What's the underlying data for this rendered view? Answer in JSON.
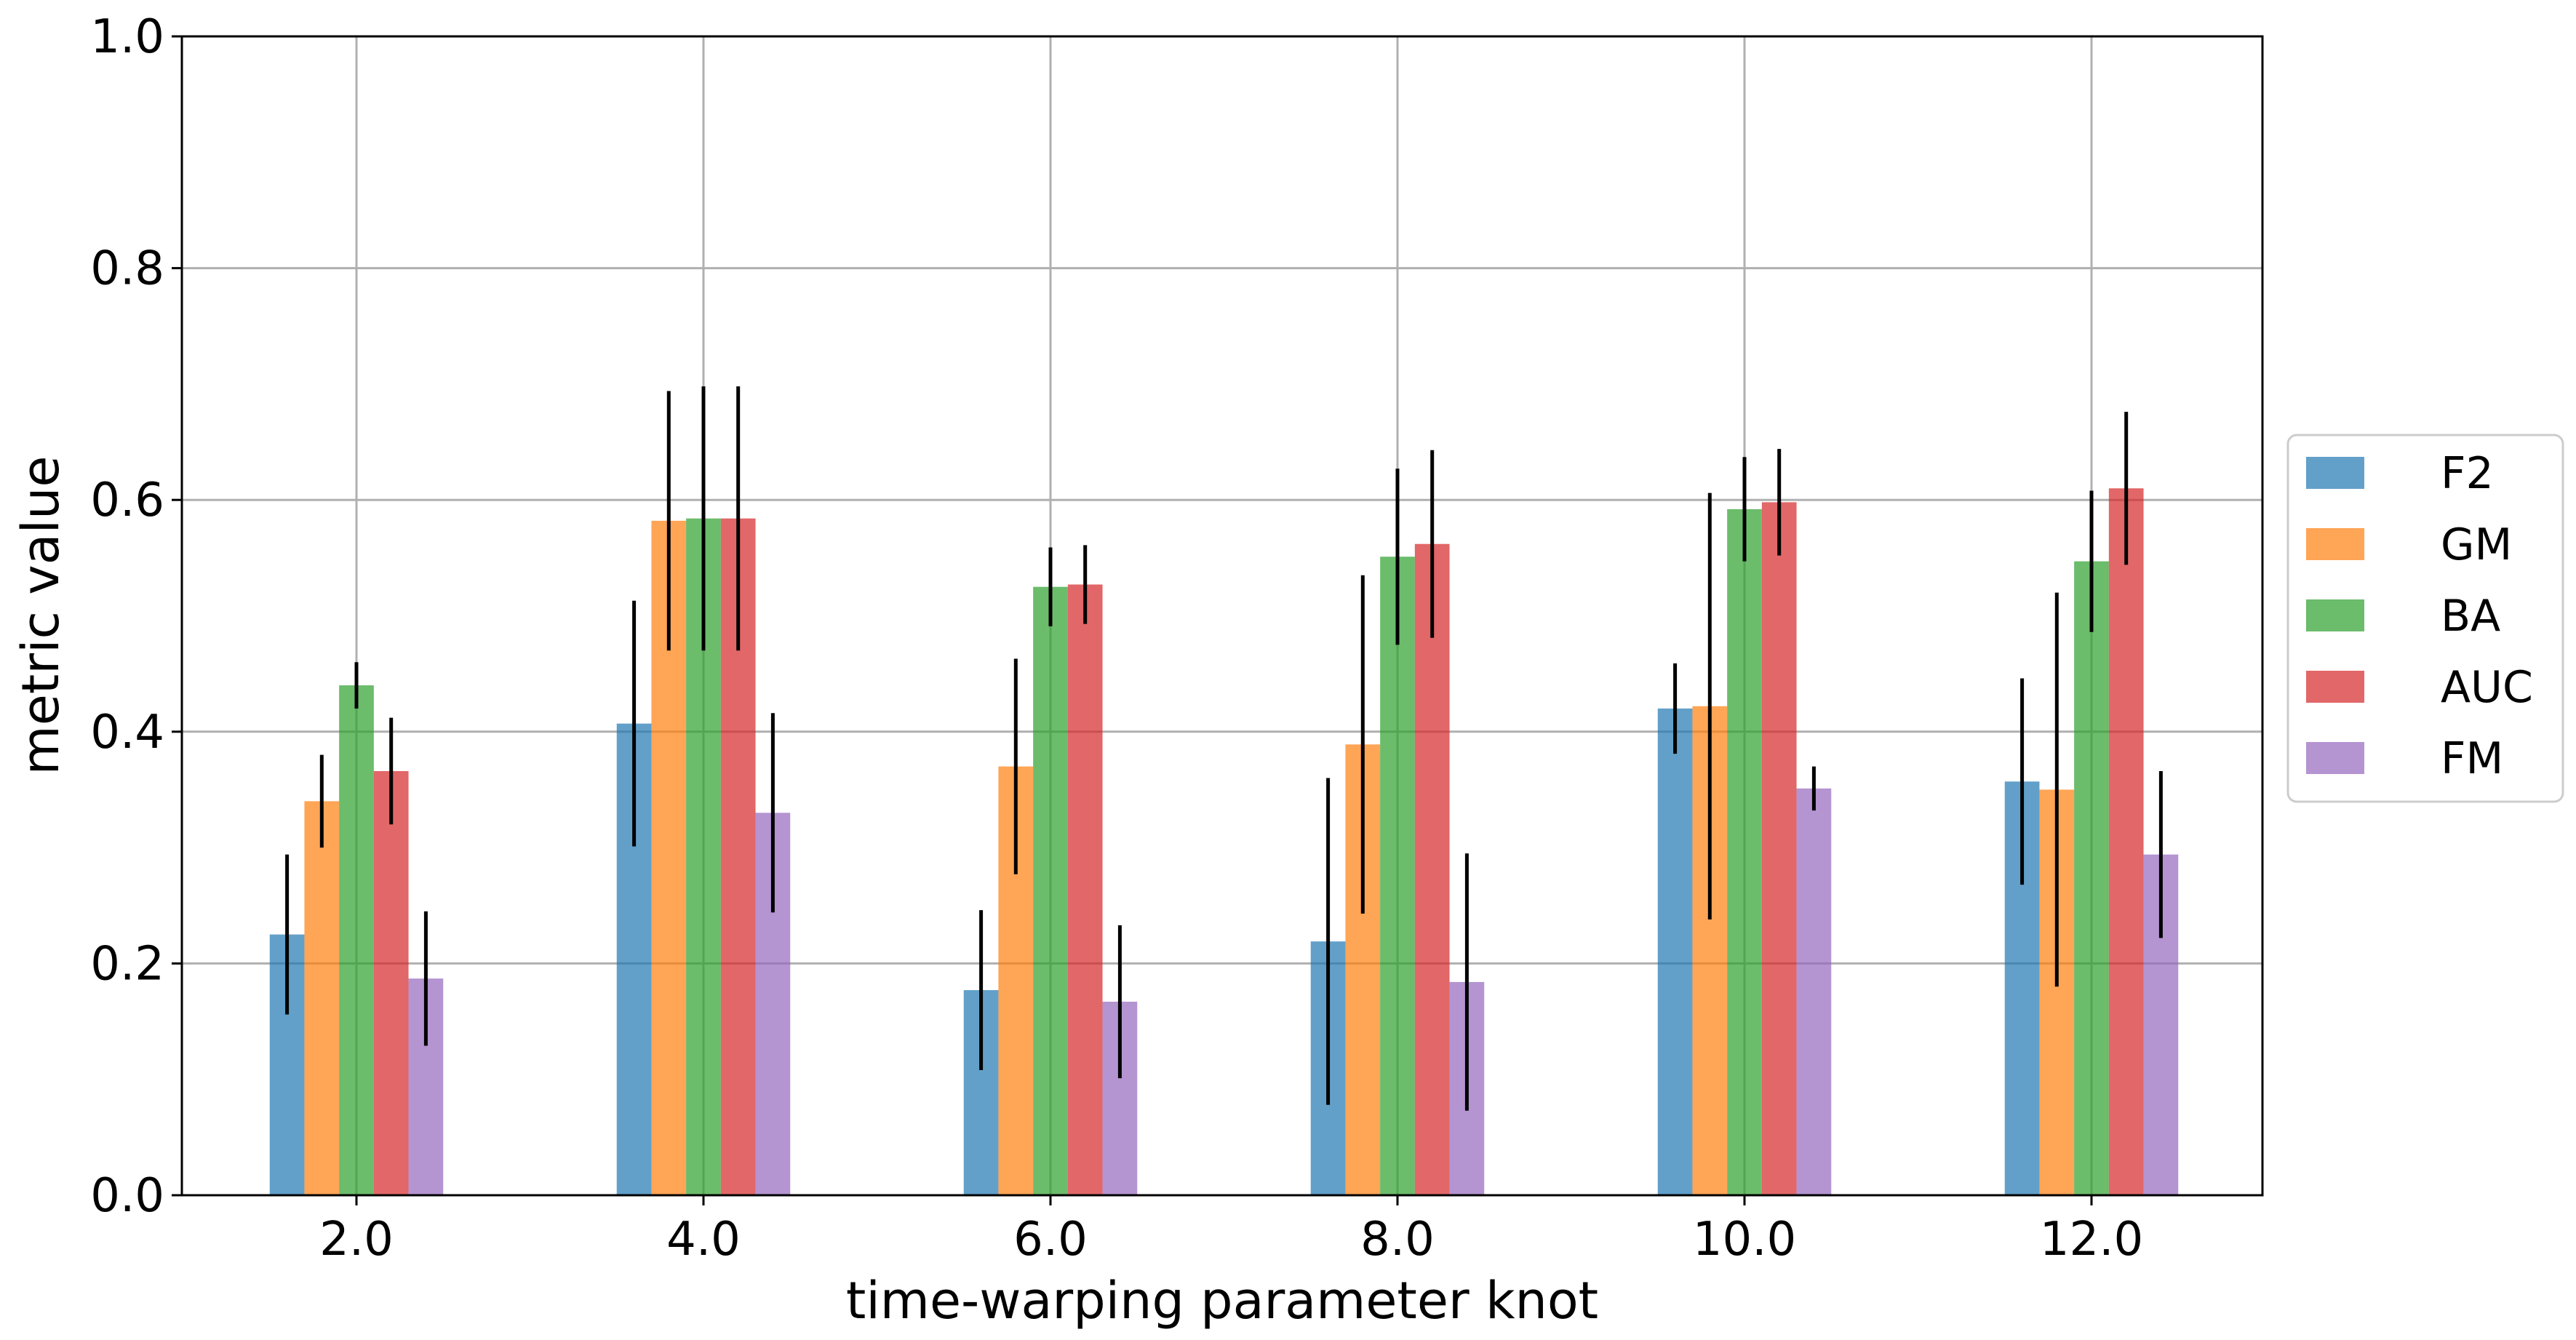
{
  "chart_data": {
    "type": "bar",
    "title": "",
    "xlabel": "time-warping parameter knot",
    "ylabel": "metric value",
    "ylim": [
      0.0,
      1.0
    ],
    "yticks": [
      "0.0",
      "0.2",
      "0.4",
      "0.6",
      "0.8",
      "1.0"
    ],
    "categories": [
      "2.0",
      "4.0",
      "6.0",
      "8.0",
      "10.0",
      "12.0"
    ],
    "grid": true,
    "legend_position": "outside-right",
    "series": [
      {
        "name": "F2",
        "color": "#1f77b4",
        "values": [
          0.225,
          0.407,
          0.177,
          0.219,
          0.42,
          0.357
        ],
        "errors": [
          0.069,
          0.106,
          0.069,
          0.141,
          0.039,
          0.089
        ]
      },
      {
        "name": "GM",
        "color": "#ff7f0e",
        "values": [
          0.34,
          0.582,
          0.37,
          0.389,
          0.422,
          0.35
        ],
        "errors": [
          0.04,
          0.112,
          0.093,
          0.146,
          0.184,
          0.17
        ]
      },
      {
        "name": "BA",
        "color": "#2ca02c",
        "values": [
          0.44,
          0.584,
          0.525,
          0.551,
          0.592,
          0.547
        ],
        "errors": [
          0.02,
          0.114,
          0.034,
          0.076,
          0.045,
          0.061
        ]
      },
      {
        "name": "AUC",
        "color": "#d62728",
        "values": [
          0.366,
          0.584,
          0.527,
          0.562,
          0.598,
          0.61
        ],
        "errors": [
          0.046,
          0.114,
          0.034,
          0.081,
          0.046,
          0.066
        ]
      },
      {
        "name": "FM",
        "color": "#9467bd",
        "values": [
          0.187,
          0.33,
          0.167,
          0.184,
          0.351,
          0.294
        ],
        "errors": [
          0.058,
          0.086,
          0.066,
          0.111,
          0.019,
          0.072
        ]
      }
    ]
  }
}
